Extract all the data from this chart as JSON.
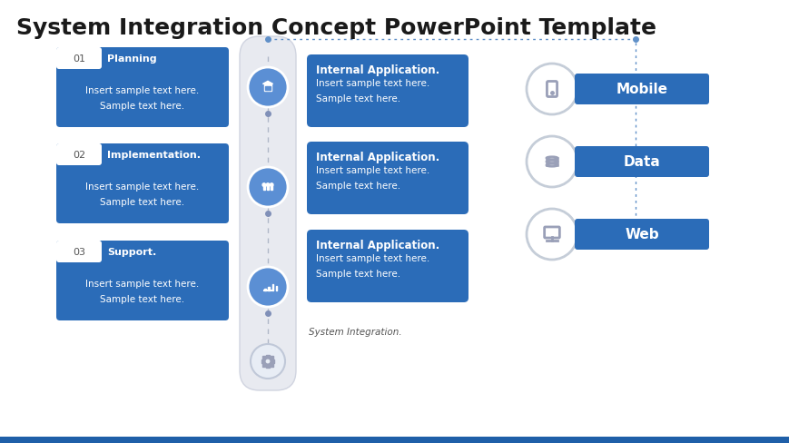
{
  "title": "System Integration Concept PowerPoint Template",
  "title_fontsize": 18,
  "title_color": "#1a1a1a",
  "bg_color": "#ffffff",
  "blue_color": "#2b6cb8",
  "left_cards": [
    {
      "num": "01",
      "title": "Planning",
      "body": "Insert sample text here.\nSample text here."
    },
    {
      "num": "02",
      "title": "Implementation.",
      "body": "Insert sample text here.\nSample text here."
    },
    {
      "num": "03",
      "title": "Support.",
      "body": "Insert sample text here.\nSample text here."
    }
  ],
  "mid_cards": [
    {
      "title": "Internal Application.",
      "body": "Insert sample text here.\nSample text here."
    },
    {
      "title": "Internal Application.",
      "body": "Insert sample text here.\nSample text here."
    },
    {
      "title": "Internal Application.",
      "body": "Insert sample text here.\nSample text here."
    }
  ],
  "right_items": [
    {
      "label": "Web"
    },
    {
      "label": "Data"
    },
    {
      "label": "Mobile"
    }
  ],
  "bottom_label": "System Integration.",
  "timeline_color": "#b0b8c8",
  "circle_bg": "#5b8fd4",
  "circle_light": "#e8edf5",
  "dashed_color": "#6090c8",
  "icon_color": "#9aa0b8"
}
